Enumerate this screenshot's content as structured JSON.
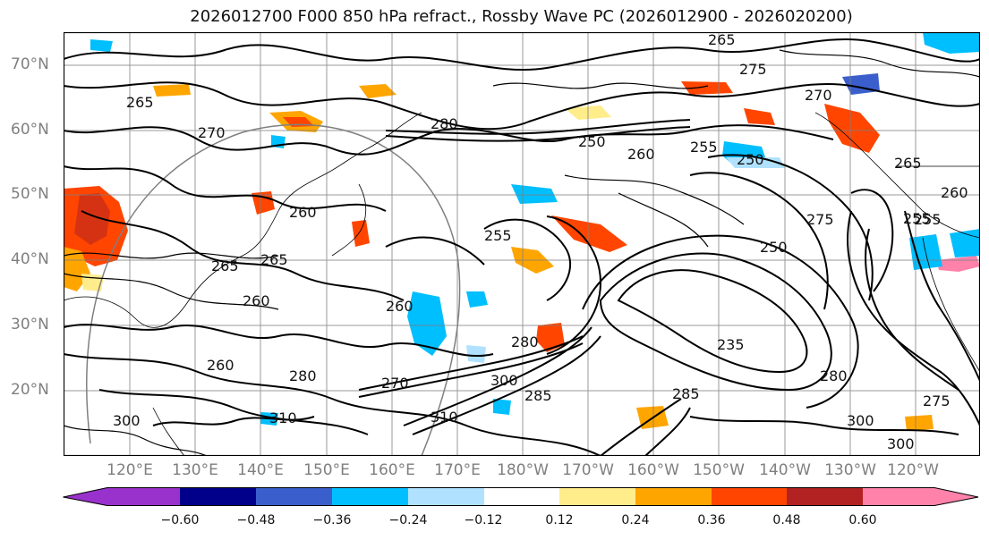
{
  "title": "2026012700 F000 850 hPa refract., Rossby Wave PC (2026012900 - 2026020200)",
  "lat_labels": [
    "70°N",
    "60°N",
    "50°N",
    "40°N",
    "30°N",
    "20°N"
  ],
  "lon_labels": [
    "120°E",
    "130°E",
    "140°E",
    "150°E",
    "160°E",
    "170°E",
    "180°W",
    "170°W",
    "160°W",
    "150°W",
    "140°W",
    "130°W",
    "120°W"
  ],
  "colorbar": {
    "colors": [
      "#9932cc",
      "#00008b",
      "#3a5fcd",
      "#00bfff",
      "#b0e2ff",
      "#ffffff",
      "#ffec8b",
      "#ffa500",
      "#ff4500",
      "#b22222",
      "#ff82ab"
    ],
    "tick_labels": [
      "−0.60",
      "−0.48",
      "−0.36",
      "−0.24",
      "−0.12",
      "0.12",
      "0.24",
      "0.36",
      "0.48",
      "0.60"
    ]
  },
  "contour_labels": [
    "265",
    "275",
    "270",
    "265",
    "250",
    "260",
    "255",
    "250",
    "265",
    "260",
    "280",
    "270",
    "260",
    "265",
    "255",
    "275",
    "255",
    "260",
    "265",
    "260",
    "280",
    "285",
    "300",
    "310",
    "260",
    "270",
    "300",
    "285",
    "280",
    "300",
    "310",
    "255",
    "235",
    "250",
    "280",
    "300",
    "275"
  ],
  "colors": {
    "frame": "#000000",
    "grid": "#7f7f7f",
    "contour": "#000000"
  }
}
